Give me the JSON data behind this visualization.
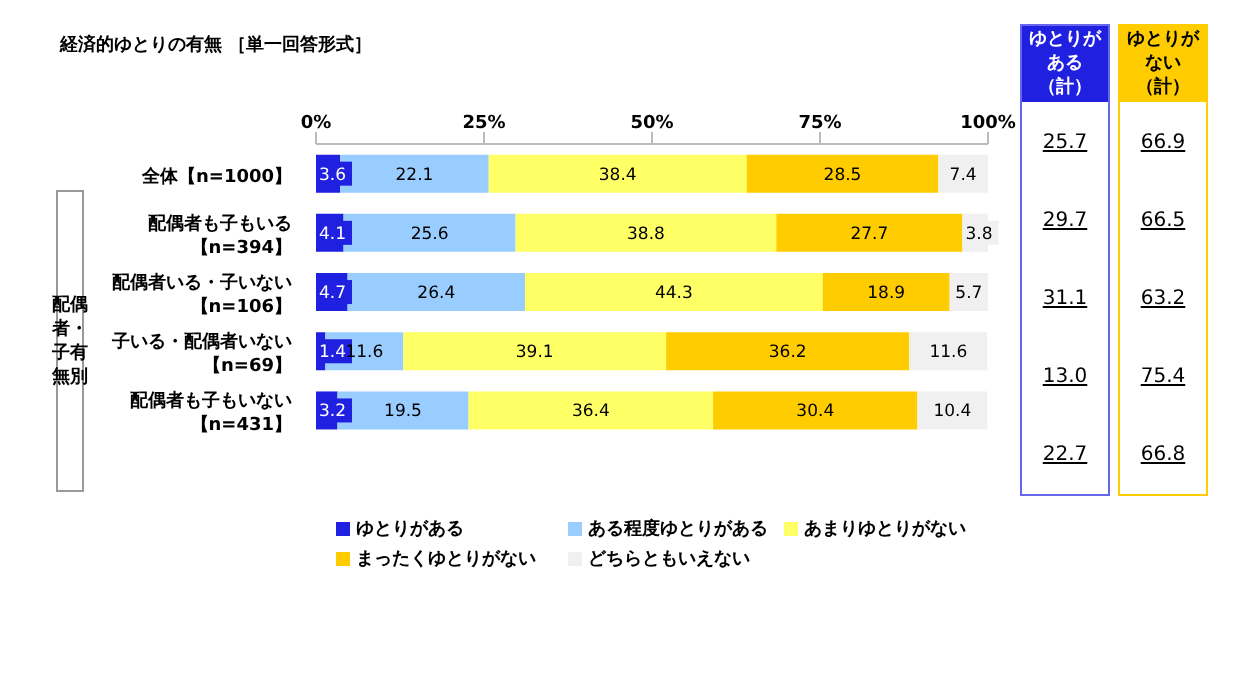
{
  "chart_data": {
    "type": "bar",
    "orientation": "horizontal",
    "stacked": true,
    "title": "経済的ゆとりの有無 ［単一回答形式］",
    "categories": [
      "全体【n=1000】",
      "配偶者も子もいる【n=394】",
      "配偶者いる・子いない【n=106】",
      "子いる・配偶者いない【n=69】",
      "配偶者も子もいない【n=431】"
    ],
    "series": [
      {
        "name": "ゆとりがある",
        "color": "#2020e0",
        "values": [
          3.6,
          4.1,
          4.7,
          1.4,
          3.2
        ]
      },
      {
        "name": "ある程度ゆとりがある",
        "color": "#99ccff",
        "values": [
          22.1,
          25.6,
          26.4,
          11.6,
          19.5
        ]
      },
      {
        "name": "あまりゆとりがない",
        "color": "#ffff66",
        "values": [
          38.4,
          38.8,
          44.3,
          39.1,
          36.4
        ]
      },
      {
        "name": "まったくゆとりがない",
        "color": "#ffcc00",
        "values": [
          28.5,
          27.7,
          18.9,
          36.2,
          30.4
        ]
      },
      {
        "name": "どちらともいえない",
        "color": "#f0f0f0",
        "values": [
          7.4,
          3.8,
          5.7,
          11.6,
          10.4
        ]
      }
    ],
    "xlim": [
      0,
      100
    ],
    "xticks": [
      {
        "value": 0,
        "label": "0%"
      },
      {
        "value": 25,
        "label": "25%"
      },
      {
        "value": 50,
        "label": "50%"
      },
      {
        "value": 75,
        "label": "75%"
      },
      {
        "value": 100,
        "label": "100%"
      }
    ],
    "data_labels": true,
    "legend": "bottom",
    "annotations": [
      "配偶者・子有無別",
      "ゆとりがある（計）",
      "ゆとりがない（計）",
      "25.7",
      "66.9",
      "29.7",
      "66.5",
      "31.1",
      "63.2",
      "13.0",
      "75.4",
      "22.7",
      "66.8"
    ]
  }
}
